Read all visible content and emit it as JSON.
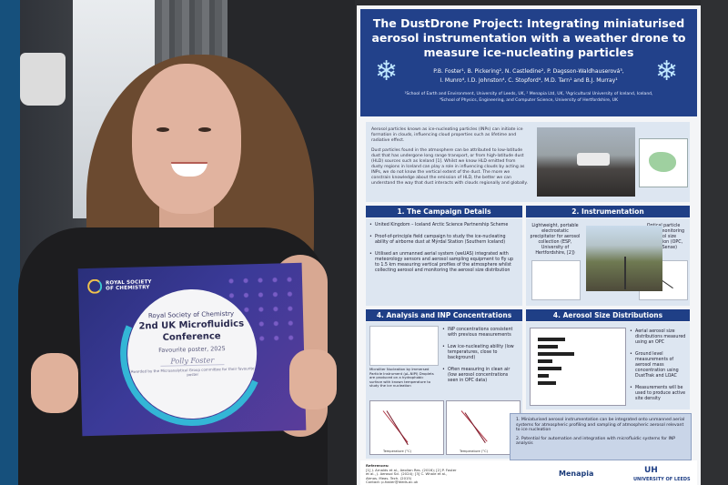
{
  "certificate": {
    "logo_text": "ROYAL SOCIETY OF CHEMISTRY",
    "organisation": "Royal Society of Chemistry",
    "conference_line1": "2nd UK Microfluidics",
    "conference_line2": "Conference",
    "award": "Favourite poster, 2025",
    "signature": "Polly Foster",
    "footer": "Awarded by the Microanalytical Group committee for their favourite poster"
  },
  "poster": {
    "title_lines": [
      "The DustDrone Project: Integrating miniaturised",
      "aerosol instrumentation with a weather drone to",
      "measure ice-nucleating particles"
    ],
    "authors_line1": "P.B. Foster¹, B. Pickering², N. Castledine², P. Dagsson-Waldhauserová³,",
    "authors_line2": "I. Munro⁴, I.D. Johnston⁴, C. Stopford⁴, M.D. Tarn¹ and B.J. Murray¹",
    "affiliation_line1": "¹School of Earth and Environment, University of Leeds, UK, ² Menapia Ltd, UK, ³Agricultural University of Iceland, Iceland,",
    "affiliation_line2": "⁴School of Physics, Engineering, and Computer Science, University of Hertfordshire, UK",
    "intro_para1": "Aerosol particles known as ice-nucleating particles (INPs) can initiate ice formation in clouds, influencing cloud properties such as lifetime and radiative effect.",
    "intro_para2": "Dust particles found in the atmosphere can be attributed to low-latitude dust that has undergone long range transport, or from high-latitude dust (HLD) sources such as Iceland [1]. Whilst we know HLD emitted from dusty regions in Iceland can play a role in influencing clouds by acting as INPs, we do not know the vertical extent of the dust. The more we constrain knowledge about the emission of HLD, the better we can understand the way that dust interacts with clouds regionally and globally.",
    "sections": {
      "campaign": {
        "heading": "1. The Campaign Details",
        "bullets": [
          "United Kingdom – Iceland Arctic Science Partnership Scheme",
          "Proof-of-principle field campaign to study the ice-nucleating ability of airborne dust at Mýrdal Station (Southern Iceland)",
          "Utilised an unmanned aerial system (weUAS) integrated with meteorology sensors and aerosol sampling equipment to fly up to 1.5 km measuring vertical profiles of the atmosphere whilst collecting aerosol and monitoring the aerosol size distribution"
        ]
      },
      "instrumentation": {
        "heading": "2. Instrumentation",
        "caption_left": "Lightweight, portable electrostatic precipitator for aerosol collection (ESP, University of Hertfordshire, [2])",
        "caption_right": "Optical particle counter monitoring aerosol size distribution (OPC, AlphaSense)"
      },
      "analysis": {
        "heading": "4. Analysis and INP Concentrations",
        "bullets": [
          "INP concentrations consistent with previous measurements",
          "Low ice-nucleating ability (low temperatures, close to background)",
          "Often measuring in clean air (low aerosol concentrations seen in OPC data)"
        ],
        "caption": "Microliter Nucleation by Immersed Particle Instrument (μL-NIPI) Droplets are produced on a hydrophobic surface with known temperature to study the ice nucleation"
      },
      "size": {
        "heading": "4. Aerosol Size Distributions",
        "bullets": [
          "Aerial aerosol size distributions measured using an OPC",
          "Ground level measurements of aerosol mass concentration using DustTrak and LOAC",
          "Measurements will be used to produce active site density"
        ]
      },
      "conclusions": [
        "1.  Miniaturised aerosol instrumentation can be integrated onto unmanned aerial systems for atmospheric profiling and sampling of atmospheric aerosol relevant to ice nucleation",
        "2.  Potential for automation and integration with microfluidic systems for INP analysis"
      ]
    },
    "references_title": "References:",
    "references": "[1] J. Arnalds et al., Aeolian Res. (2016); [2] P. Foster et al., J. Aerosol Sci. (2024); [3] C. Whale et al., Atmos. Meas. Tech. (2015)",
    "contact": "Contact: p.foster@leeds.ac.uk",
    "logo_menapia": "Menapia",
    "logo_uh": "UH",
    "logo_leeds": "UNIVERSITY OF LEEDS",
    "axis_small_left": "Temperature (°C)",
    "axis_small_right": "Temperature (°C)"
  },
  "colors": {
    "poster_header": "#22418a",
    "section_header": "#1f3f86",
    "certificate": "#3b3a98",
    "accent_ring": "#33b6d6"
  }
}
